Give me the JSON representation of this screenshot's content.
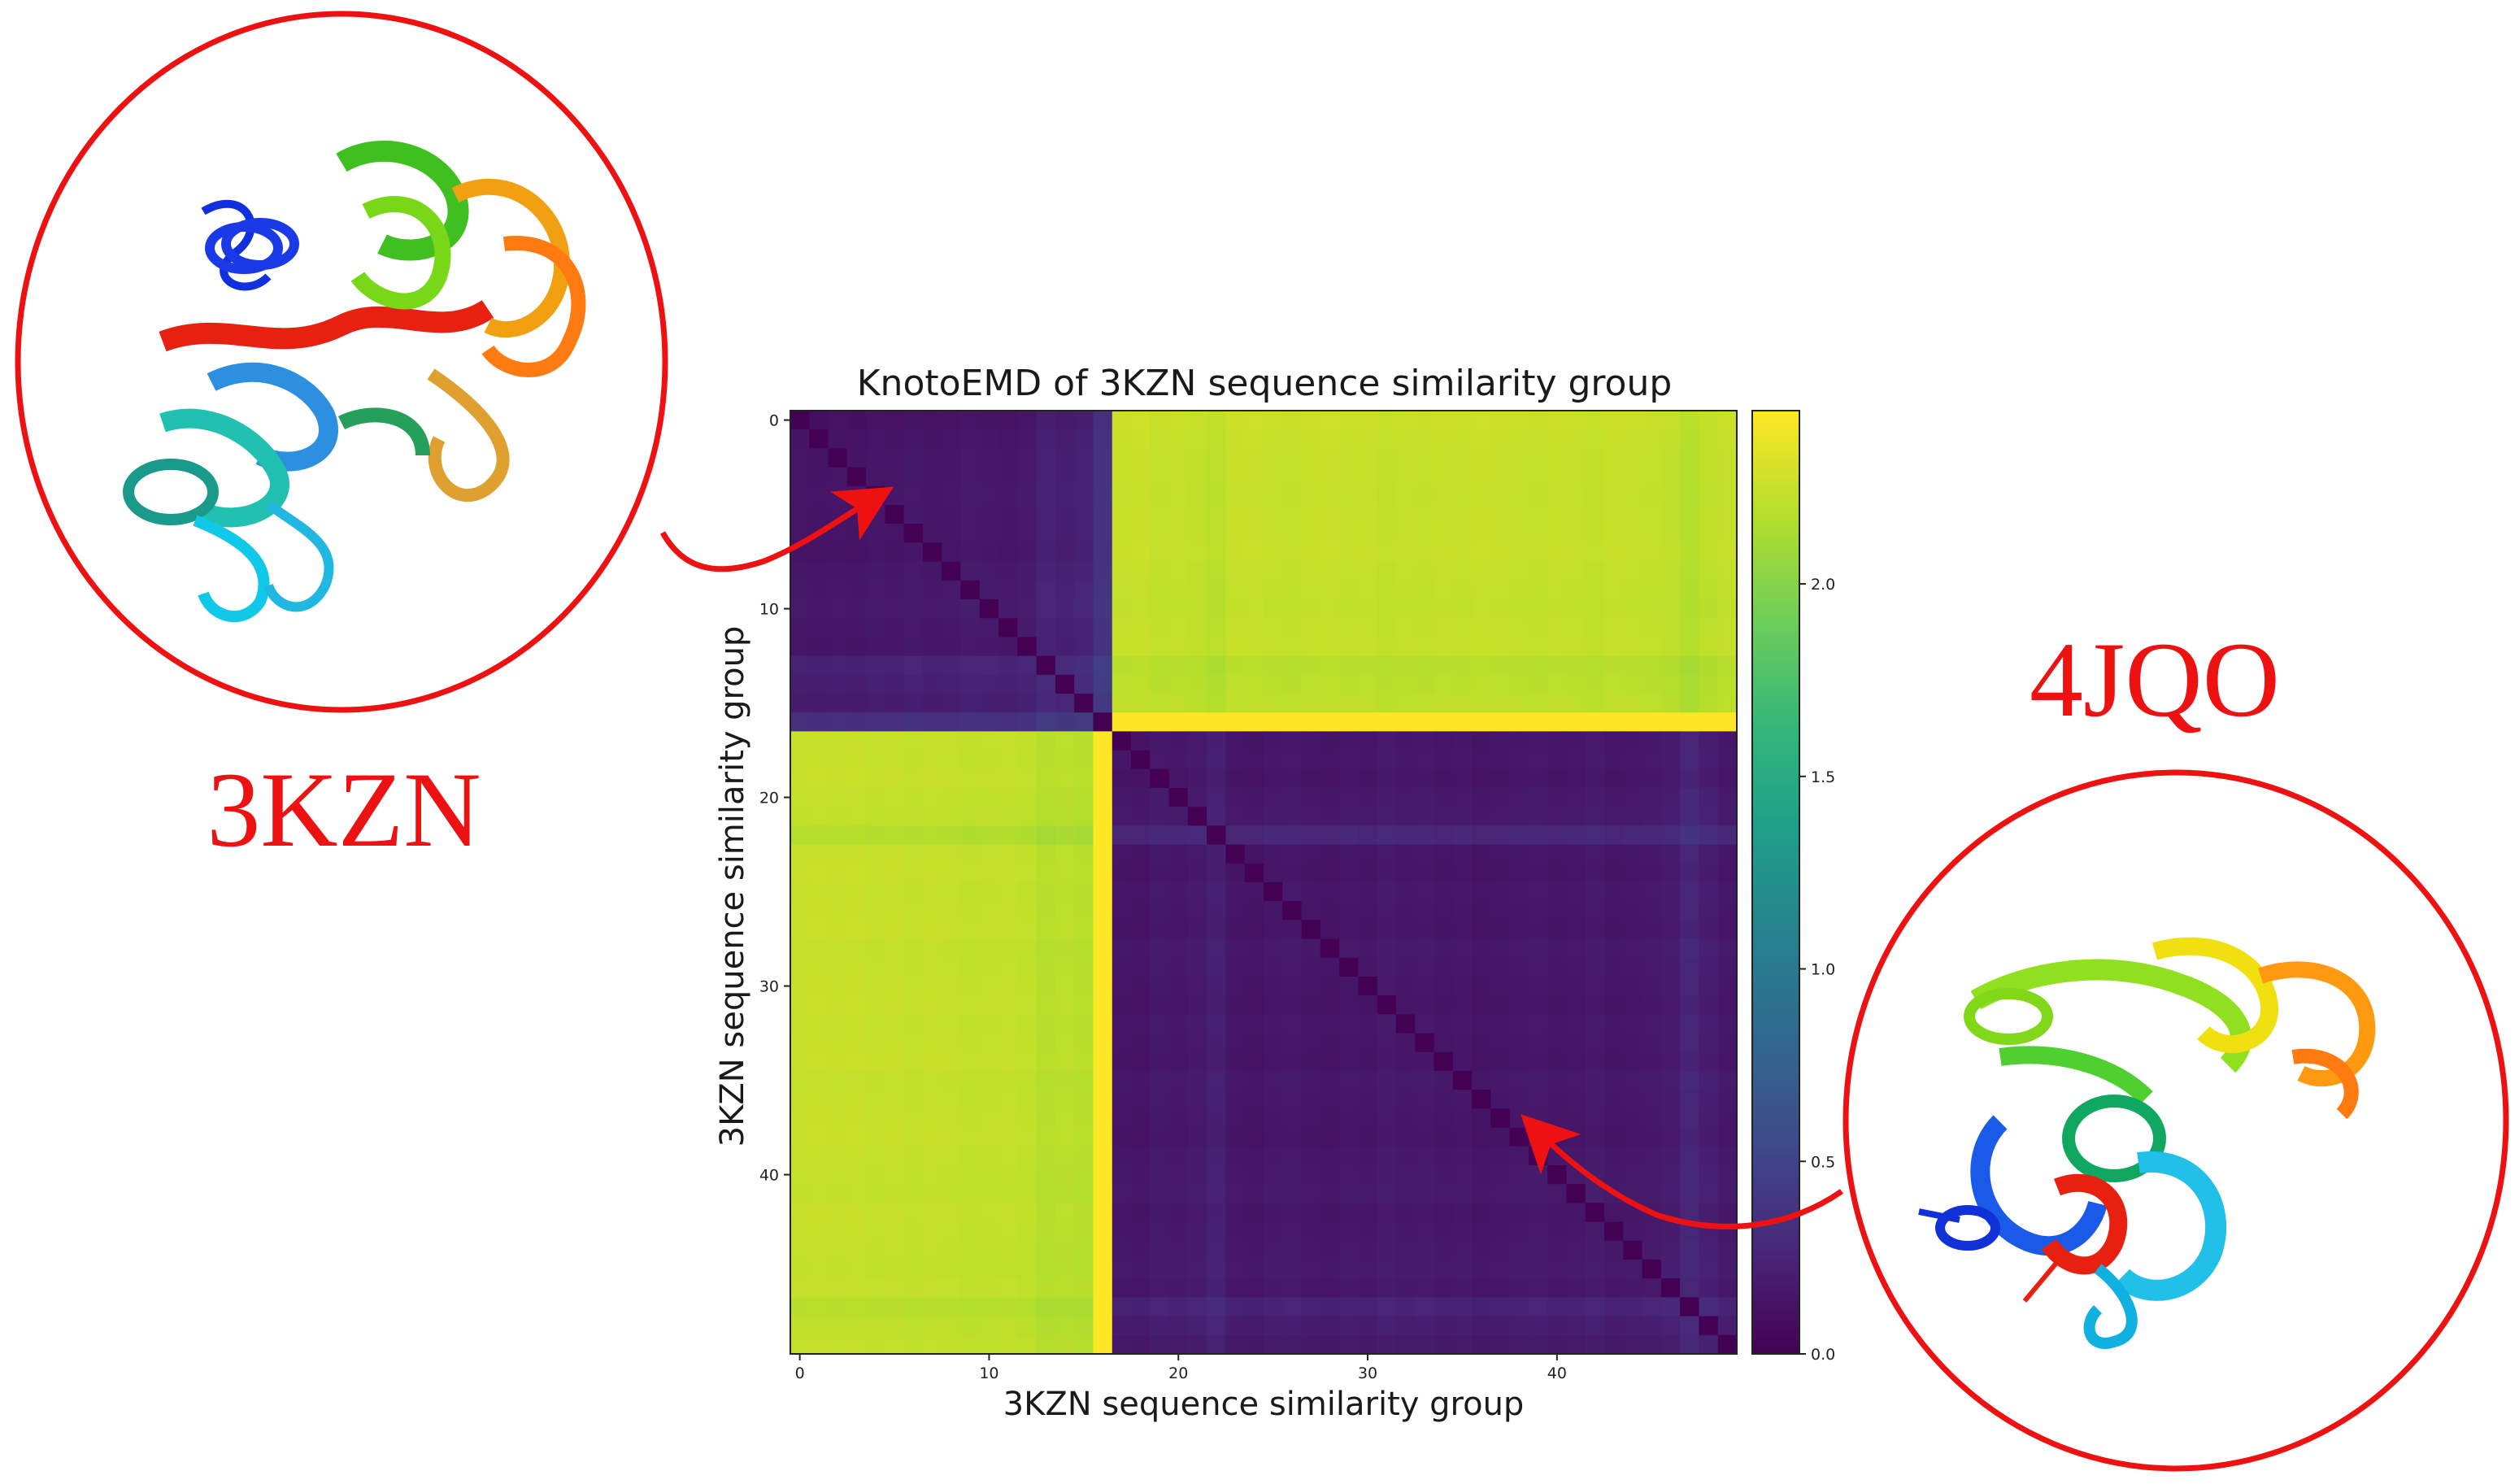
{
  "chart_data": {
    "type": "heatmap",
    "title": "KnotoEMD of 3KZN sequence similarity group",
    "xlabel": "3KZN sequence similarity group",
    "ylabel": "3KZN sequence similarity group",
    "n": 50,
    "group_split": 16,
    "xticks": [
      0,
      10,
      20,
      30,
      40
    ],
    "yticks": [
      0,
      10,
      20,
      30,
      40
    ],
    "colorbar": {
      "min": 0.0,
      "max": 2.45,
      "ticks": [
        0.0,
        0.5,
        1.0,
        1.5,
        2.0
      ],
      "tick_labels": [
        "0.0",
        "0.5",
        "1.0",
        "1.5",
        "2.0"
      ],
      "colormap": [
        "#440154",
        "#482878",
        "#3e4a89",
        "#31688e",
        "#26828e",
        "#1f9e89",
        "#35b779",
        "#6ece58",
        "#b5de2b",
        "#fde725"
      ]
    },
    "within_group_value": 0.08,
    "between_group_value": 2.28,
    "row_offsets": [
      0.0,
      0.02,
      0.03,
      0.03,
      0.04,
      0.03,
      0.03,
      0.02,
      0.04,
      0.05,
      0.06,
      0.04,
      0.03,
      0.12,
      0.1,
      0.08,
      0.22,
      0.03,
      0.04,
      0.02,
      0.05,
      0.06,
      0.15,
      0.03,
      0.02,
      0.04,
      0.03,
      0.02,
      0.05,
      0.04,
      0.03,
      0.02,
      0.04,
      0.03,
      0.02,
      0.05,
      0.04,
      0.03,
      0.02,
      0.04,
      0.05,
      0.06,
      0.03,
      0.04,
      0.05,
      0.06,
      0.04,
      0.12,
      0.08,
      0.05
    ],
    "col_offsets": [
      0.03,
      0.02,
      0.03,
      0.02,
      0.04,
      0.03,
      0.05,
      0.03,
      0.04,
      0.06,
      0.05,
      0.04,
      0.06,
      0.12,
      0.1,
      0.12,
      0.25,
      0.03,
      0.02,
      0.05,
      0.04,
      0.06,
      0.1,
      0.03,
      0.02,
      0.04,
      0.05,
      0.03,
      0.02,
      0.04,
      0.03,
      0.06,
      0.04,
      0.05,
      0.03,
      0.04,
      0.02,
      0.03,
      0.04,
      0.05,
      0.03,
      0.04,
      0.06,
      0.03,
      0.04,
      0.05,
      0.07,
      0.14,
      0.09,
      0.04
    ]
  },
  "annotations": {
    "left_protein": "3KZN",
    "right_protein": "4JQO",
    "accent_color": "#ee1111"
  }
}
